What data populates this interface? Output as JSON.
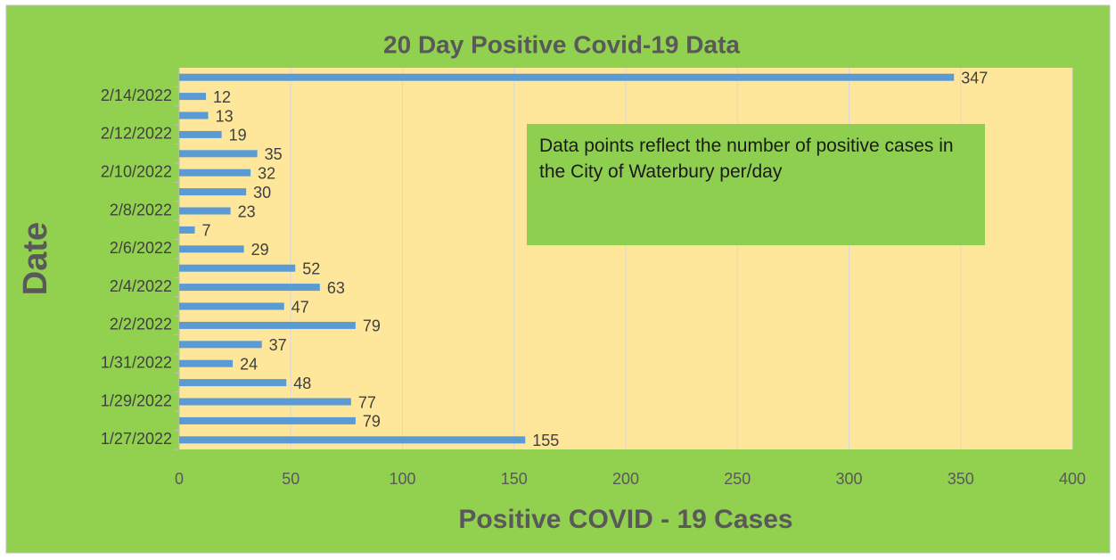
{
  "chart_data": {
    "type": "bar",
    "orientation": "horizontal",
    "title": "20 Day Positive Covid-19 Data",
    "x_label": "Positive COVID - 19 Cases",
    "y_label": "Date",
    "annotation": "Data points reflect the number of positive cases in the City of Waterbury per/day",
    "categories": [
      "1/27/2022",
      null,
      "1/29/2022",
      null,
      "1/31/2022",
      null,
      "2/2/2022",
      null,
      "2/4/2022",
      null,
      "2/6/2022",
      null,
      "2/8/2022",
      null,
      "2/10/2022",
      null,
      "2/12/2022",
      null,
      "2/14/2022",
      null
    ],
    "values": [
      155,
      79,
      77,
      48,
      24,
      37,
      79,
      47,
      63,
      52,
      29,
      7,
      23,
      30,
      32,
      35,
      19,
      13,
      12,
      347
    ],
    "color": "#5b9bd5",
    "xlim": [
      0,
      400
    ],
    "xticks": [
      0,
      50,
      100,
      150,
      200,
      250,
      300,
      350,
      400
    ],
    "grid": true
  }
}
